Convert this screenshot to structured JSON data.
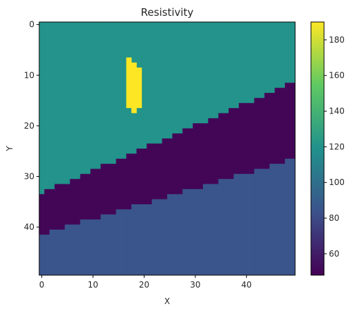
{
  "chart_data": {
    "type": "heatmap",
    "title": "Resistivity",
    "xlabel": "X",
    "ylabel": "Y",
    "nx": 50,
    "ny": 50,
    "xticks": [
      0,
      10,
      20,
      30,
      40
    ],
    "yticks": [
      0,
      10,
      20,
      30,
      40
    ],
    "y_axis_inverted": true,
    "colormap": "viridis",
    "colorbar": {
      "range": [
        48,
        190
      ],
      "ticks": [
        60,
        80,
        100,
        120,
        140,
        160,
        180
      ]
    },
    "layers": {
      "upper_value": 120,
      "middle_value": 50,
      "lower_value": 85,
      "anomaly_value": 190
    },
    "boundary_upper_top_row_by_x": [
      34,
      33,
      33,
      32,
      32,
      32,
      31,
      31,
      30,
      30,
      29,
      29,
      28,
      28,
      28,
      27,
      27,
      26,
      26,
      25,
      25,
      24,
      24,
      24,
      23,
      23,
      22,
      22,
      21,
      21,
      20,
      20,
      20,
      19,
      19,
      18,
      18,
      17,
      17,
      16,
      16,
      16,
      15,
      15,
      14,
      14,
      13,
      13,
      12,
      12
    ],
    "boundary_lower_top_row_by_x": [
      42,
      42,
      41,
      41,
      41,
      40,
      40,
      40,
      39,
      39,
      39,
      39,
      38,
      38,
      38,
      37,
      37,
      37,
      36,
      36,
      36,
      36,
      35,
      35,
      35,
      34,
      34,
      34,
      33,
      33,
      33,
      33,
      32,
      32,
      32,
      31,
      31,
      31,
      30,
      30,
      30,
      30,
      29,
      29,
      29,
      28,
      28,
      28,
      27,
      27
    ],
    "anomaly_cells": [
      {
        "x": 17,
        "y_start": 7,
        "y_end": 17
      },
      {
        "x": 18,
        "y_start": 8,
        "y_end": 18
      },
      {
        "x": 19,
        "y_start": 9,
        "y_end": 17
      }
    ]
  }
}
